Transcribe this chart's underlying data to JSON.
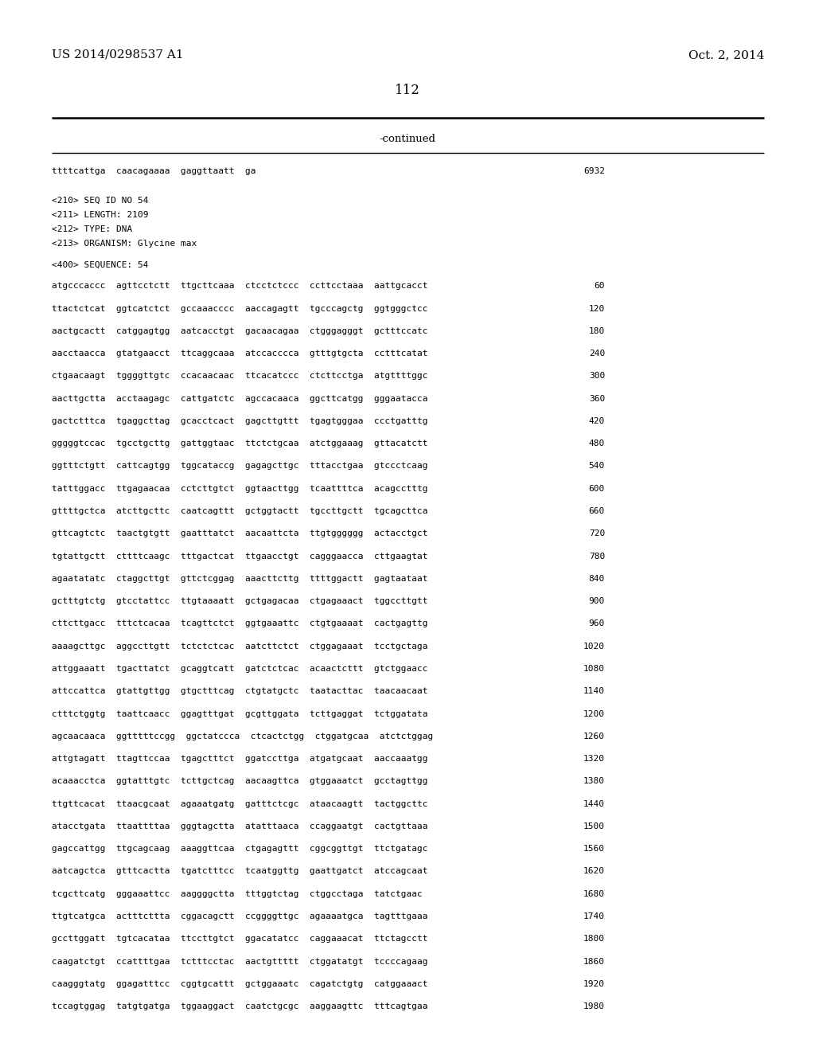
{
  "patent_number": "US 2014/0298537 A1",
  "date": "Oct. 2, 2014",
  "page_number": "112",
  "continued_label": "-continued",
  "background_color": "#ffffff",
  "text_color": "#000000",
  "lines": [
    {
      "text": "ttttcattga  caacagaaaa  gaggttaatt  ga",
      "num": "6932",
      "type": "seq"
    },
    {
      "text": "",
      "type": "blank"
    },
    {
      "text": "",
      "type": "blank"
    },
    {
      "text": "<210> SEQ ID NO 54",
      "type": "meta"
    },
    {
      "text": "<211> LENGTH: 2109",
      "type": "meta"
    },
    {
      "text": "<212> TYPE: DNA",
      "type": "meta"
    },
    {
      "text": "<213> ORGANISM: Glycine max",
      "type": "meta"
    },
    {
      "text": "",
      "type": "blank"
    },
    {
      "text": "<400> SEQUENCE: 54",
      "type": "meta"
    },
    {
      "text": "",
      "type": "blank"
    },
    {
      "text": "atgcccaccc  agttcctctt  ttgcttcaaa  ctcctctccc  ccttcctaaa  aattgcacct",
      "num": "60",
      "type": "seq"
    },
    {
      "text": "",
      "type": "blank"
    },
    {
      "text": "ttactctcat  ggtcatctct  gccaaacccc  aaccagagtt  tgcccagctg  ggtgggctcc",
      "num": "120",
      "type": "seq"
    },
    {
      "text": "",
      "type": "blank"
    },
    {
      "text": "aactgcactt  catggagtgg  aatcacctgt  gacaacagaa  ctgggagggt  gctttccatc",
      "num": "180",
      "type": "seq"
    },
    {
      "text": "",
      "type": "blank"
    },
    {
      "text": "aacctaacca  gtatgaacct  ttcaggcaaa  atccacccca  gtttgtgcta  cctttcatat",
      "num": "240",
      "type": "seq"
    },
    {
      "text": "",
      "type": "blank"
    },
    {
      "text": "ctgaacaagt  tggggttgtc  ccacaacaac  ttcacatccc  ctcttcctga  atgttttggc",
      "num": "300",
      "type": "seq"
    },
    {
      "text": "",
      "type": "blank"
    },
    {
      "text": "aacttgctta  acctaagagc  cattgatctc  agccacaaca  ggcttcatgg  gggaatacca",
      "num": "360",
      "type": "seq"
    },
    {
      "text": "",
      "type": "blank"
    },
    {
      "text": "gactctttca  tgaggcttag  gcacctcact  gagcttgttt  tgagtgggaa  ccctgatttg",
      "num": "420",
      "type": "seq"
    },
    {
      "text": "",
      "type": "blank"
    },
    {
      "text": "gggggtccac  tgcctgcttg  gattggtaac  ttctctgcaa  atctggaaag  gttacatctt",
      "num": "480",
      "type": "seq"
    },
    {
      "text": "",
      "type": "blank"
    },
    {
      "text": "ggtttctgtt  cattcagtgg  tggcataccg  gagagcttgc  tttacctgaa  gtccctcaag",
      "num": "540",
      "type": "seq"
    },
    {
      "text": "",
      "type": "blank"
    },
    {
      "text": "tatttggacc  ttgagaacaa  cctcttgtct  ggtaacttgg  tcaattttca  acagcctttg",
      "num": "600",
      "type": "seq"
    },
    {
      "text": "",
      "type": "blank"
    },
    {
      "text": "gttttgctca  atcttgcttc  caatcagttt  gctggtactt  tgccttgctt  tgcagcttca",
      "num": "660",
      "type": "seq"
    },
    {
      "text": "",
      "type": "blank"
    },
    {
      "text": "gttcagtctc  taactgtgtt  gaatttatct  aacaattcta  ttgtgggggg  actacctgct",
      "num": "720",
      "type": "seq"
    },
    {
      "text": "",
      "type": "blank"
    },
    {
      "text": "tgtattgctt  cttttcaagc  tttgactcat  ttgaacctgt  cagggaacca  cttgaagtat",
      "num": "780",
      "type": "seq"
    },
    {
      "text": "",
      "type": "blank"
    },
    {
      "text": "agaatatatc  ctaggcttgt  gttctcggag  aaacttcttg  ttttggactt  gagtaataat",
      "num": "840",
      "type": "seq"
    },
    {
      "text": "",
      "type": "blank"
    },
    {
      "text": "gctttgtctg  gtcctattcc  ttgtaaaatt  gctgagacaa  ctgagaaact  tggccttgtt",
      "num": "900",
      "type": "seq"
    },
    {
      "text": "",
      "type": "blank"
    },
    {
      "text": "cttcttgacc  tttctcacaa  tcagttctct  ggtgaaattc  ctgtgaaaat  cactgagttg",
      "num": "960",
      "type": "seq"
    },
    {
      "text": "",
      "type": "blank"
    },
    {
      "text": "aaaagcttgc  aggccttgtt  tctctctcac  aatcttctct  ctggagaaat  tcctgctaga",
      "num": "1020",
      "type": "seq"
    },
    {
      "text": "",
      "type": "blank"
    },
    {
      "text": "attggaaatt  tgacttatct  gcaggtcatt  gatctctcac  acaactcttt  gtctggaacc",
      "num": "1080",
      "type": "seq"
    },
    {
      "text": "",
      "type": "blank"
    },
    {
      "text": "attccattca  gtattgttgg  gtgctttcag  ctgtatgctc  taatacttac  taacaacaat",
      "num": "1140",
      "type": "seq"
    },
    {
      "text": "",
      "type": "blank"
    },
    {
      "text": "ctttctggtg  taattcaacc  ggagtttgat  gcgttggata  tcttgaggat  tctggatata",
      "num": "1200",
      "type": "seq"
    },
    {
      "text": "",
      "type": "blank"
    },
    {
      "text": "agcaacaaca  ggtttttccgg  ggctatccca  ctcactctgg  ctggatgcaa  atctctggag",
      "num": "1260",
      "type": "seq"
    },
    {
      "text": "",
      "type": "blank"
    },
    {
      "text": "attgtagatt  ttagttccaa  tgagctttct  ggatccttga  atgatgcaat  aaccaaatgg",
      "num": "1320",
      "type": "seq"
    },
    {
      "text": "",
      "type": "blank"
    },
    {
      "text": "acaaacctca  ggtatttgtc  tcttgctcag  aacaagttca  gtggaaatct  gcctagttgg",
      "num": "1380",
      "type": "seq"
    },
    {
      "text": "",
      "type": "blank"
    },
    {
      "text": "ttgttcacat  ttaacgcaat  agaaatgatg  gatttctcgc  ataacaagtt  tactggcttc",
      "num": "1440",
      "type": "seq"
    },
    {
      "text": "",
      "type": "blank"
    },
    {
      "text": "atacctgata  ttaattttaa  gggtagctta  atatttaaca  ccaggaatgt  cactgttaaa",
      "num": "1500",
      "type": "seq"
    },
    {
      "text": "",
      "type": "blank"
    },
    {
      "text": "gagccattgg  ttgcagcaag  aaaggttcaa  ctgagagttt  cggcggttgt  ttctgatagc",
      "num": "1560",
      "type": "seq"
    },
    {
      "text": "",
      "type": "blank"
    },
    {
      "text": "aatcagctca  gtttcactta  tgatctttcc  tcaatggttg  gaattgatct  atccagcaat",
      "num": "1620",
      "type": "seq"
    },
    {
      "text": "",
      "type": "blank"
    },
    {
      "text": "tcgcttcatg  gggaaattcc  aaggggctta  tttggtctag  ctggcctaga  tatctgaac",
      "num": "1680",
      "type": "seq"
    },
    {
      "text": "",
      "type": "blank"
    },
    {
      "text": "ttgtcatgca  actttcttta  cggacagctt  ccggggttgc  agaaaatgca  tagtttgaaa",
      "num": "1740",
      "type": "seq"
    },
    {
      "text": "",
      "type": "blank"
    },
    {
      "text": "gccttggatt  tgtcacataa  ttccttgtct  ggacatatcc  caggaaacat  ttctagcctt",
      "num": "1800",
      "type": "seq"
    },
    {
      "text": "",
      "type": "blank"
    },
    {
      "text": "caagatctgt  ccattttgaa  tctttcctac  aactgttttt  ctggatatgt  tccccagaag",
      "num": "1860",
      "type": "seq"
    },
    {
      "text": "",
      "type": "blank"
    },
    {
      "text": "caagggtatg  ggagatttcc  cggtgcattt  gctggaaatc  cagatctgtg  catggaaact",
      "num": "1920",
      "type": "seq"
    },
    {
      "text": "",
      "type": "blank"
    },
    {
      "text": "tccagtggag  tatgtgatga  tggaaggact  caatctgcgc  aaggaagttc  tttcagtgaa",
      "num": "1980",
      "type": "seq"
    }
  ]
}
